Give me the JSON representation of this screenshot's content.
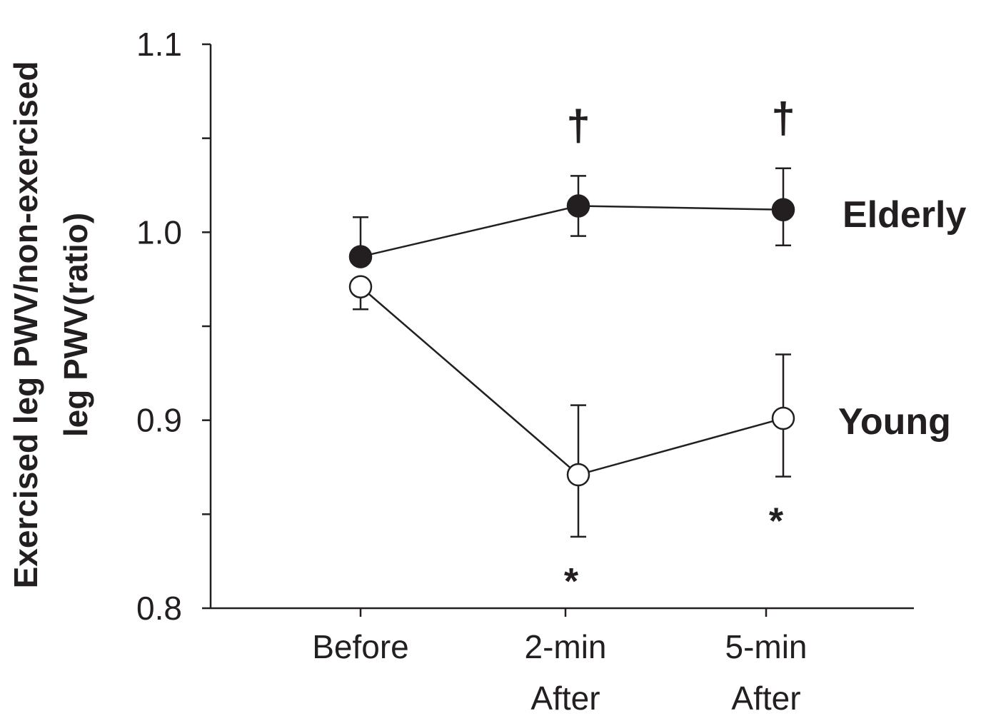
{
  "chart_data": {
    "type": "line",
    "categories": [
      [
        "Before"
      ],
      [
        "2-min",
        "After"
      ],
      [
        "5-min",
        "After"
      ]
    ],
    "ylabel": [
      "Exercised leg PWV/non-exercised",
      "leg PWV(ratio)"
    ],
    "ylim": [
      0.8,
      1.1
    ],
    "yticks": [
      "0.8",
      "0.9",
      "1.0",
      "1.1"
    ],
    "y_minor_step": 0.05,
    "grid": false,
    "series": [
      {
        "name": "Elderly",
        "marker": "filled-circle",
        "values": [
          0.987,
          1.014,
          1.012
        ],
        "err_upper": [
          1.008,
          1.03,
          1.034
        ],
        "err_lower": [
          0.987,
          0.998,
          0.993
        ],
        "annotations": [
          "",
          "†",
          "†"
        ]
      },
      {
        "name": "Young",
        "marker": "open-circle",
        "values": [
          0.971,
          0.871,
          0.901
        ],
        "err_upper": [
          0.971,
          0.908,
          0.935
        ],
        "err_lower": [
          0.959,
          0.838,
          0.87
        ],
        "annotations": [
          "",
          "*",
          "*"
        ]
      }
    ],
    "colors": {
      "ink": "#231f20",
      "open_fill": "#ffffff"
    }
  }
}
